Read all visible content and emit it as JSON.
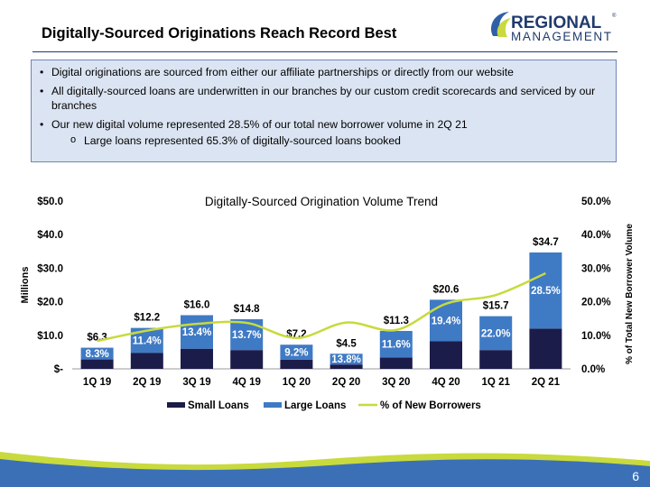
{
  "slide": {
    "title": "Digitally-Sourced Originations Reach Record Best",
    "logo_line1": "REGIONAL",
    "logo_line2": "MANAGEMENT",
    "logo_mark": "®",
    "page_number": "6",
    "colors": {
      "accent": "#1f3b6e",
      "box_bg": "#dbe4f2",
      "footer_blue": "#3b70b7",
      "footer_green": "#c8da3d"
    }
  },
  "bullets": [
    "Digital originations are sourced from either our affiliate partnerships or directly from our website",
    "All digitally-sourced loans are underwritten in our branches by our custom credit scorecards and serviced by our branches",
    "Our new digital volume represented 28.5% of our total new borrower volume in 2Q 21"
  ],
  "sub_bullet": "Large loans represented 65.3% of digitally-sourced loans booked",
  "chart_data": {
    "type": "bar",
    "title": "Digitally-Sourced Origination Volume Trend",
    "ylabel": "Millions",
    "y2label": "% of Total New Borrower Volume",
    "ylim": [
      0,
      50
    ],
    "y2lim": [
      0,
      50
    ],
    "yticks": [
      "$-",
      "$10.0",
      "$20.0",
      "$30.0",
      "$40.0",
      "$50.0"
    ],
    "y2ticks": [
      "0.0%",
      "10.0%",
      "20.0%",
      "30.0%",
      "40.0%",
      "50.0%"
    ],
    "categories": [
      "1Q 19",
      "2Q 19",
      "3Q 19",
      "4Q 19",
      "1Q 20",
      "2Q 20",
      "3Q 20",
      "4Q 20",
      "1Q 21",
      "2Q 21"
    ],
    "series": [
      {
        "name": "Small Loans",
        "color": "#1c1c4a",
        "values": [
          2.8,
          4.8,
          6.0,
          5.6,
          2.7,
          1.3,
          3.4,
          8.2,
          5.6,
          12.0
        ]
      },
      {
        "name": "Large Loans",
        "color": "#3f7ac5",
        "values": [
          3.5,
          7.4,
          10.0,
          9.2,
          4.5,
          3.2,
          7.9,
          12.4,
          10.1,
          22.7
        ]
      },
      {
        "name": "% of New Borrowers",
        "color": "#c8da3d",
        "values": [
          8.3,
          11.4,
          13.4,
          13.7,
          9.2,
          13.8,
          11.6,
          19.4,
          22.0,
          28.5
        ]
      }
    ],
    "total_labels": [
      "$6.3",
      "$12.2",
      "$16.0",
      "$14.8",
      "$7.2",
      "$4.5",
      "$11.3",
      "$20.6",
      "$15.7",
      "$34.7"
    ],
    "pct_labels": [
      "8.3%",
      "11.4%",
      "13.4%",
      "13.7%",
      "9.2%",
      "13.8%",
      "11.6%",
      "19.4%",
      "22.0%",
      "28.5%"
    ],
    "legend_position": "bottom"
  }
}
